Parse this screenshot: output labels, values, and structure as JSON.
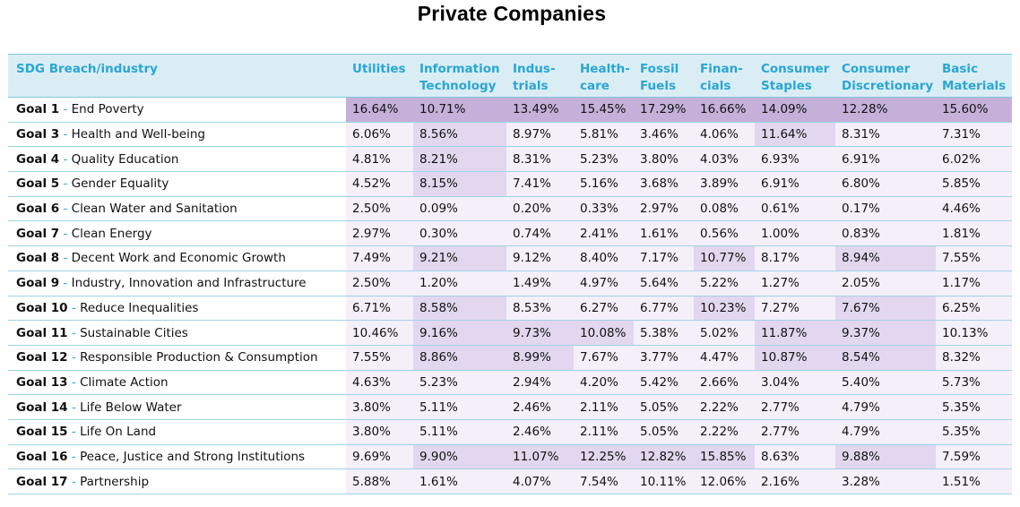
{
  "title": "Private Companies",
  "header": {
    "corner": "SDG Breach/industry",
    "columns": [
      "Utilities",
      "Information Technology",
      "Indus-trials",
      "Health-care",
      "Fossil Fuels",
      "Finan-cials",
      "Consumer Staples",
      "Consumer Discretionary",
      "Basic Materials"
    ]
  },
  "colors": {
    "header_text": "#2aa6d2",
    "header_bg": "#daedf5",
    "highlight_strong": "#c5b0d9",
    "highlight_medium": "#e2d7ee",
    "highlight_light": "#f4eff9"
  },
  "chart_data": {
    "type": "table",
    "title": "Private Companies",
    "row_header": "SDG Breach/industry",
    "columns": [
      "Utilities",
      "Information Technology",
      "Indus-trials",
      "Health-care",
      "Fossil Fuels",
      "Finan-cials",
      "Consumer Staples",
      "Consumer Discretionary",
      "Basic Materials"
    ],
    "rows": [
      {
        "goal": "Goal 1",
        "name": "End Poverty",
        "values": [
          "16.64%",
          "10.71%",
          "13.49%",
          "15.45%",
          "17.29%",
          "16.66%",
          "14.09%",
          "12.28%",
          "15.60%"
        ]
      },
      {
        "goal": "Goal 3",
        "name": "Health and Well-being",
        "values": [
          "6.06%",
          "8.56%",
          "8.97%",
          "5.81%",
          "3.46%",
          "4.06%",
          "11.64%",
          "8.31%",
          "7.31%"
        ]
      },
      {
        "goal": "Goal 4",
        "name": "Quality Education",
        "values": [
          "4.81%",
          "8.21%",
          "8.31%",
          "5.23%",
          "3.80%",
          "4.03%",
          "6.93%",
          "6.91%",
          "6.02%"
        ]
      },
      {
        "goal": "Goal 5",
        "name": "Gender Equality",
        "values": [
          "4.52%",
          "8.15%",
          "7.41%",
          "5.16%",
          "3.68%",
          "3.89%",
          "6.91%",
          "6.80%",
          "5.85%"
        ]
      },
      {
        "goal": "Goal 6",
        "name": "Clean Water and Sanitation",
        "values": [
          "2.50%",
          "0.09%",
          "0.20%",
          "0.33%",
          "2.97%",
          "0.08%",
          "0.61%",
          "0.17%",
          "4.46%"
        ]
      },
      {
        "goal": "Goal 7",
        "name": "Clean Energy",
        "values": [
          "2.97%",
          "0.30%",
          "0.74%",
          "2.41%",
          "1.61%",
          "0.56%",
          "1.00%",
          "0.83%",
          "1.81%"
        ]
      },
      {
        "goal": "Goal 8",
        "name": "Decent Work and Economic Growth",
        "values": [
          "7.49%",
          "9.21%",
          "9.12%",
          "8.40%",
          "7.17%",
          "10.77%",
          "8.17%",
          "8.94%",
          "7.55%"
        ]
      },
      {
        "goal": "Goal 9",
        "name": "Industry, Innovation and Infrastructure",
        "values": [
          "2.50%",
          "1.20%",
          "1.49%",
          "4.97%",
          "5.64%",
          "5.22%",
          "1.27%",
          "2.05%",
          "1.17%"
        ]
      },
      {
        "goal": "Goal 10",
        "name": "Reduce Inequalities",
        "values": [
          "6.71%",
          "8.58%",
          "8.53%",
          "6.27%",
          "6.77%",
          "10.23%",
          "7.27%",
          "7.67%",
          "6.25%"
        ]
      },
      {
        "goal": "Goal 11",
        "name": "Sustainable Cities",
        "values": [
          "10.46%",
          "9.16%",
          "9.73%",
          "10.08%",
          "5.38%",
          "5.02%",
          "11.87%",
          "9.37%",
          "10.13%"
        ]
      },
      {
        "goal": "Goal 12",
        "name": "Responsible Production & Consumption",
        "values": [
          "7.55%",
          "8.86%",
          "8.99%",
          "7.67%",
          "3.77%",
          "4.47%",
          "10.87%",
          "8.54%",
          "8.32%"
        ]
      },
      {
        "goal": "Goal 13",
        "name": "Climate Action",
        "values": [
          "4.63%",
          "5.23%",
          "2.94%",
          "4.20%",
          "5.42%",
          "2.66%",
          "3.04%",
          "5.40%",
          "5.73%"
        ]
      },
      {
        "goal": "Goal 14",
        "name": "Life Below Water",
        "values": [
          "3.80%",
          "5.11%",
          "2.46%",
          "2.11%",
          "5.05%",
          "2.22%",
          "2.77%",
          "4.79%",
          "5.35%"
        ]
      },
      {
        "goal": "Goal 15",
        "name": "Life On Land",
        "values": [
          "3.80%",
          "5.11%",
          "2.46%",
          "2.11%",
          "5.05%",
          "2.22%",
          "2.77%",
          "4.79%",
          "5.35%"
        ]
      },
      {
        "goal": "Goal 16",
        "name": "Peace, Justice and Strong Institutions",
        "values": [
          "9.69%",
          "9.90%",
          "11.07%",
          "12.25%",
          "12.82%",
          "15.85%",
          "8.63%",
          "9.88%",
          "7.59%"
        ]
      },
      {
        "goal": "Goal 17",
        "name": "Partnership",
        "values": [
          "5.88%",
          "1.61%",
          "4.07%",
          "7.54%",
          "10.11%",
          "12.06%",
          "2.16%",
          "3.28%",
          "1.51%"
        ]
      }
    ],
    "shading": [
      [
        "strong",
        "strong",
        "strong",
        "strong",
        "strong",
        "strong",
        "strong",
        "strong",
        "strong"
      ],
      [
        "light",
        "medium",
        "light",
        "light",
        "light",
        "light",
        "medium",
        "light",
        "light"
      ],
      [
        "light",
        "medium",
        "light",
        "light",
        "light",
        "light",
        "light",
        "light",
        "light"
      ],
      [
        "light",
        "medium",
        "light",
        "light",
        "light",
        "light",
        "light",
        "light",
        "light"
      ],
      [
        "light",
        "light",
        "light",
        "light",
        "light",
        "light",
        "light",
        "light",
        "light"
      ],
      [
        "light",
        "light",
        "light",
        "light",
        "light",
        "light",
        "light",
        "light",
        "light"
      ],
      [
        "light",
        "medium",
        "light",
        "light",
        "light",
        "medium",
        "light",
        "medium",
        "light"
      ],
      [
        "light",
        "light",
        "light",
        "light",
        "light",
        "light",
        "light",
        "light",
        "light"
      ],
      [
        "light",
        "medium",
        "light",
        "light",
        "light",
        "medium",
        "light",
        "medium",
        "light"
      ],
      [
        "light",
        "medium",
        "medium",
        "medium",
        "light",
        "light",
        "medium",
        "medium",
        "light"
      ],
      [
        "light",
        "medium",
        "medium",
        "light",
        "light",
        "light",
        "medium",
        "medium",
        "light"
      ],
      [
        "light",
        "light",
        "light",
        "light",
        "light",
        "light",
        "light",
        "light",
        "light"
      ],
      [
        "light",
        "light",
        "light",
        "light",
        "light",
        "light",
        "light",
        "light",
        "light"
      ],
      [
        "light",
        "light",
        "light",
        "light",
        "light",
        "light",
        "light",
        "light",
        "light"
      ],
      [
        "light",
        "medium",
        "medium",
        "medium",
        "medium",
        "medium",
        "light",
        "medium",
        "light"
      ],
      [
        "light",
        "light",
        "light",
        "light",
        "light",
        "light",
        "light",
        "light",
        "light"
      ]
    ]
  }
}
